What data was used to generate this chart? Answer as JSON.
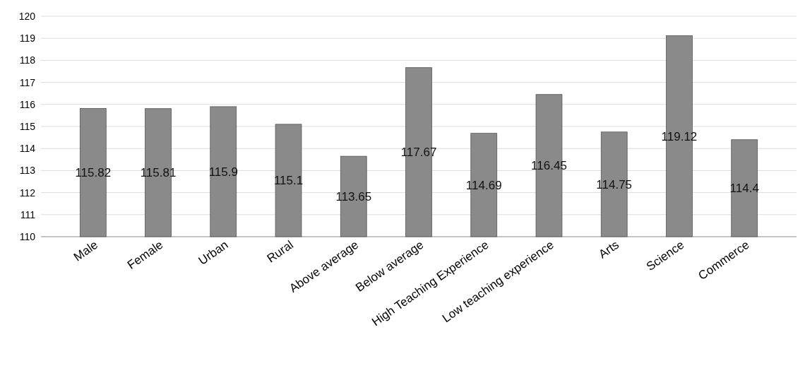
{
  "chart_data": {
    "type": "bar",
    "categories": [
      "Male",
      "Female",
      "Urban",
      "Rural",
      "Above average",
      "Below average",
      "High Teaching Experience",
      "Low teaching experience",
      "Arts",
      "Science",
      "Commerce"
    ],
    "values": [
      115.82,
      115.81,
      115.9,
      115.1,
      113.65,
      117.67,
      114.69,
      116.45,
      114.75,
      119.12,
      114.4
    ],
    "color": "#8a8a8a",
    "ylim": [
      110,
      120
    ],
    "yticks": [
      110,
      111,
      112,
      113,
      114,
      115,
      116,
      117,
      118,
      119,
      120
    ],
    "grid": "y",
    "data_labels": true
  }
}
